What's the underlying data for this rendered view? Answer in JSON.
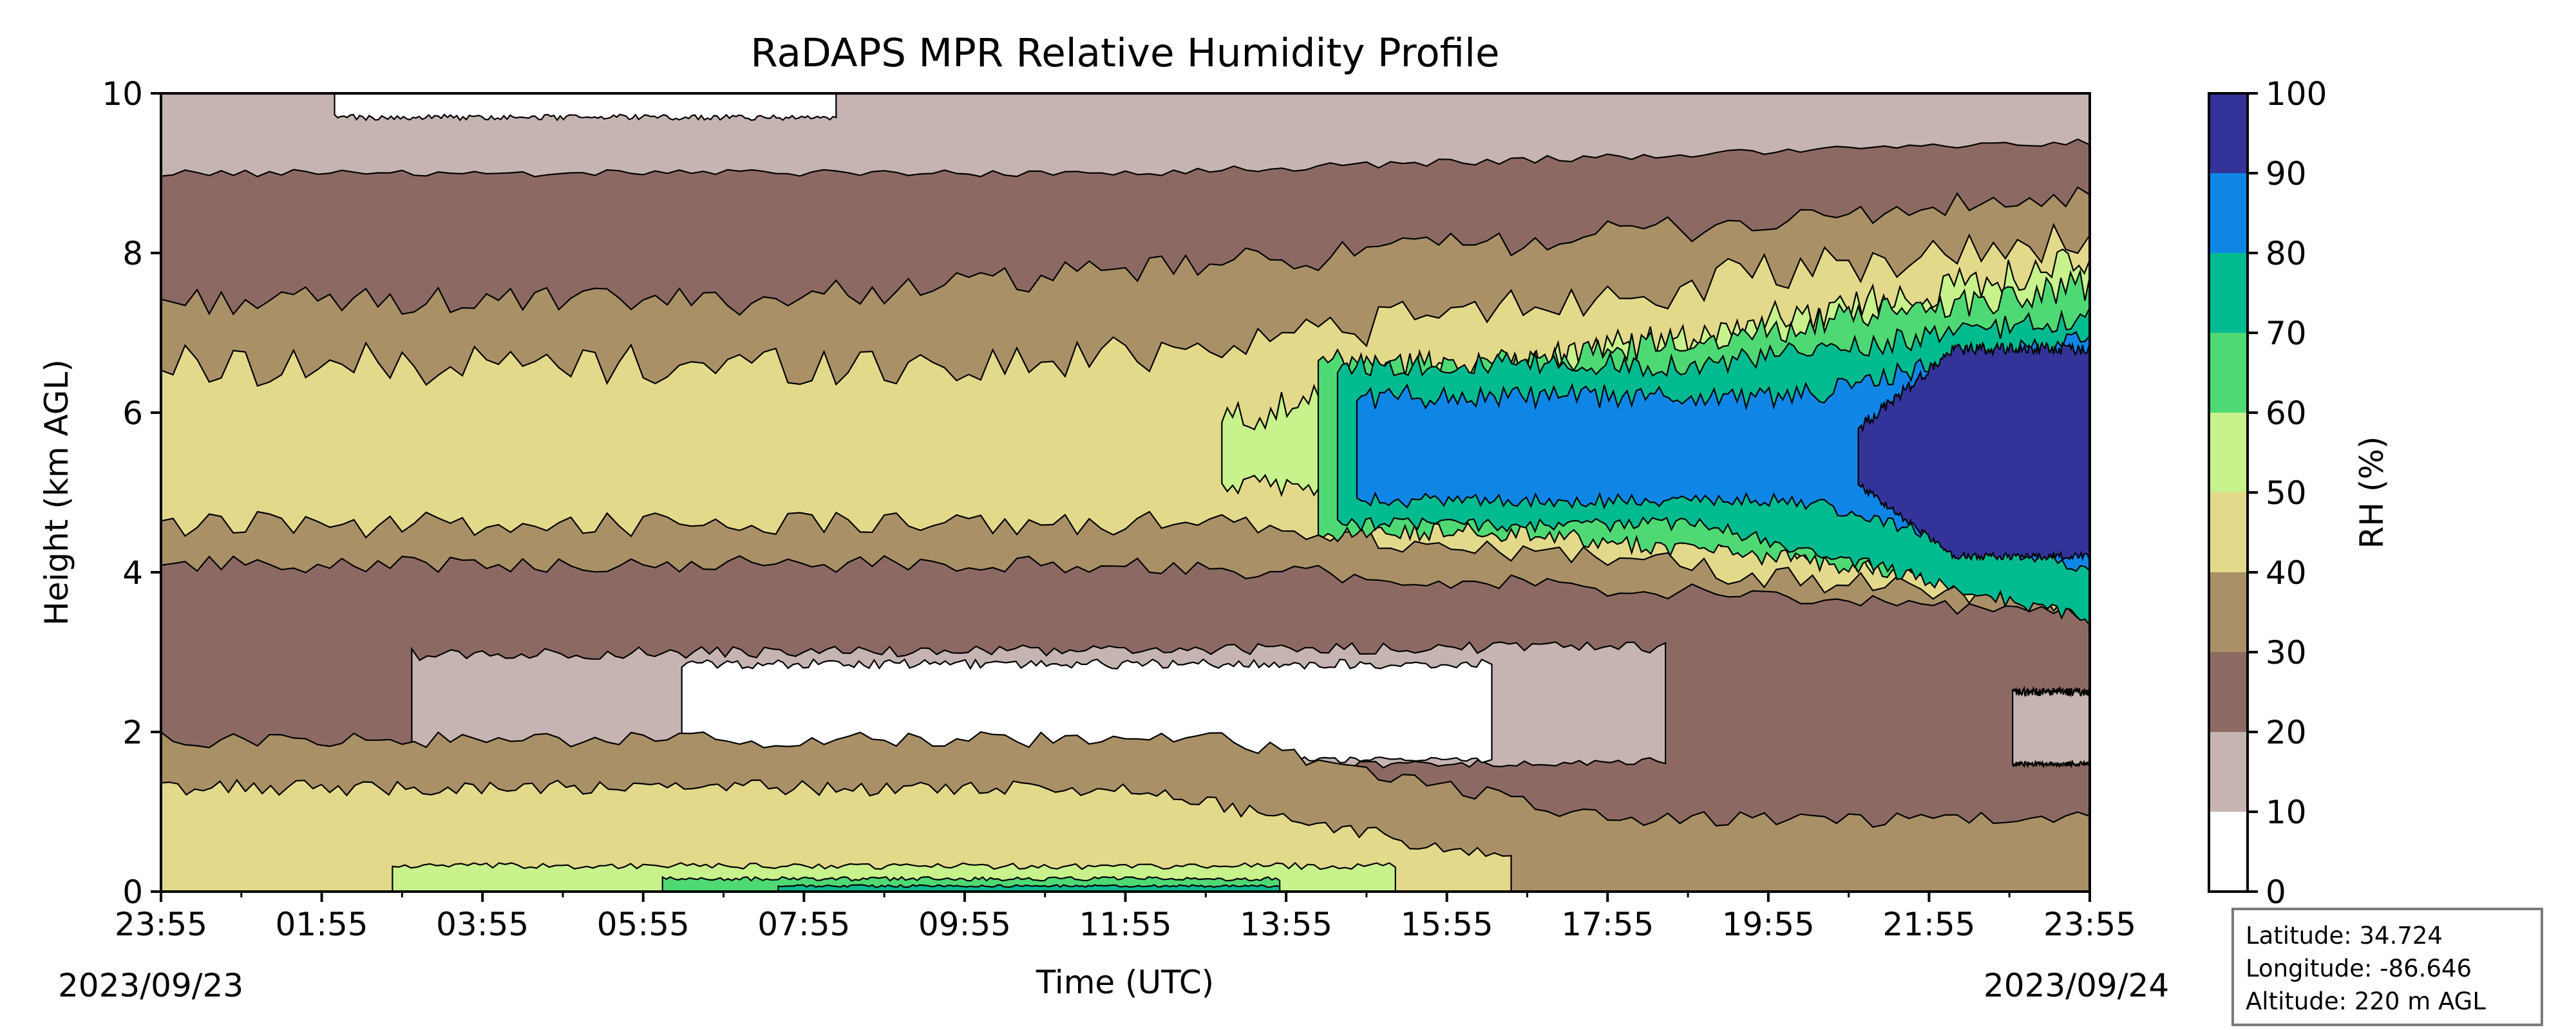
{
  "chart_data": {
    "type": "heatmap",
    "subtype": "filled contour (time-height)",
    "title": "RaDAPS MPR Relative Humidity Profile",
    "xlabel": "Time (UTC)",
    "ylabel": "Height (km AGL)",
    "x_ticks": [
      "23:55",
      "01:55",
      "03:55",
      "05:55",
      "07:55",
      "09:55",
      "11:55",
      "13:55",
      "15:55",
      "17:55",
      "19:55",
      "21:55",
      "23:55"
    ],
    "y_ticks": [
      0,
      2,
      4,
      6,
      8,
      10
    ],
    "ylim": [
      0,
      10
    ],
    "start_date": "2023/09/23",
    "end_date": "2023/09/24",
    "colorbar": {
      "label": "RH (%)",
      "ticks": [
        0,
        10,
        20,
        30,
        40,
        50,
        60,
        70,
        80,
        90,
        100
      ],
      "colors": [
        "#ffffff",
        "#c5b4b1",
        "#8c6a63",
        "#a99066",
        "#e3d98b",
        "#c8f28c",
        "#4fd975",
        "#00bb8f",
        "#0f86e6",
        "#333399"
      ]
    },
    "field_description": "RH banded structure: surface moist layer (40-80%), dry layer near 2 km (0-20%), mid-level moist band 4-8 km increasing to 90-100% after 21:55, dry upper levels (10-30%)"
  },
  "info": {
    "latitude": "Latitude: 34.724",
    "longitude": "Longitude: -86.646",
    "altitude": "Altitude: 220 m AGL"
  }
}
